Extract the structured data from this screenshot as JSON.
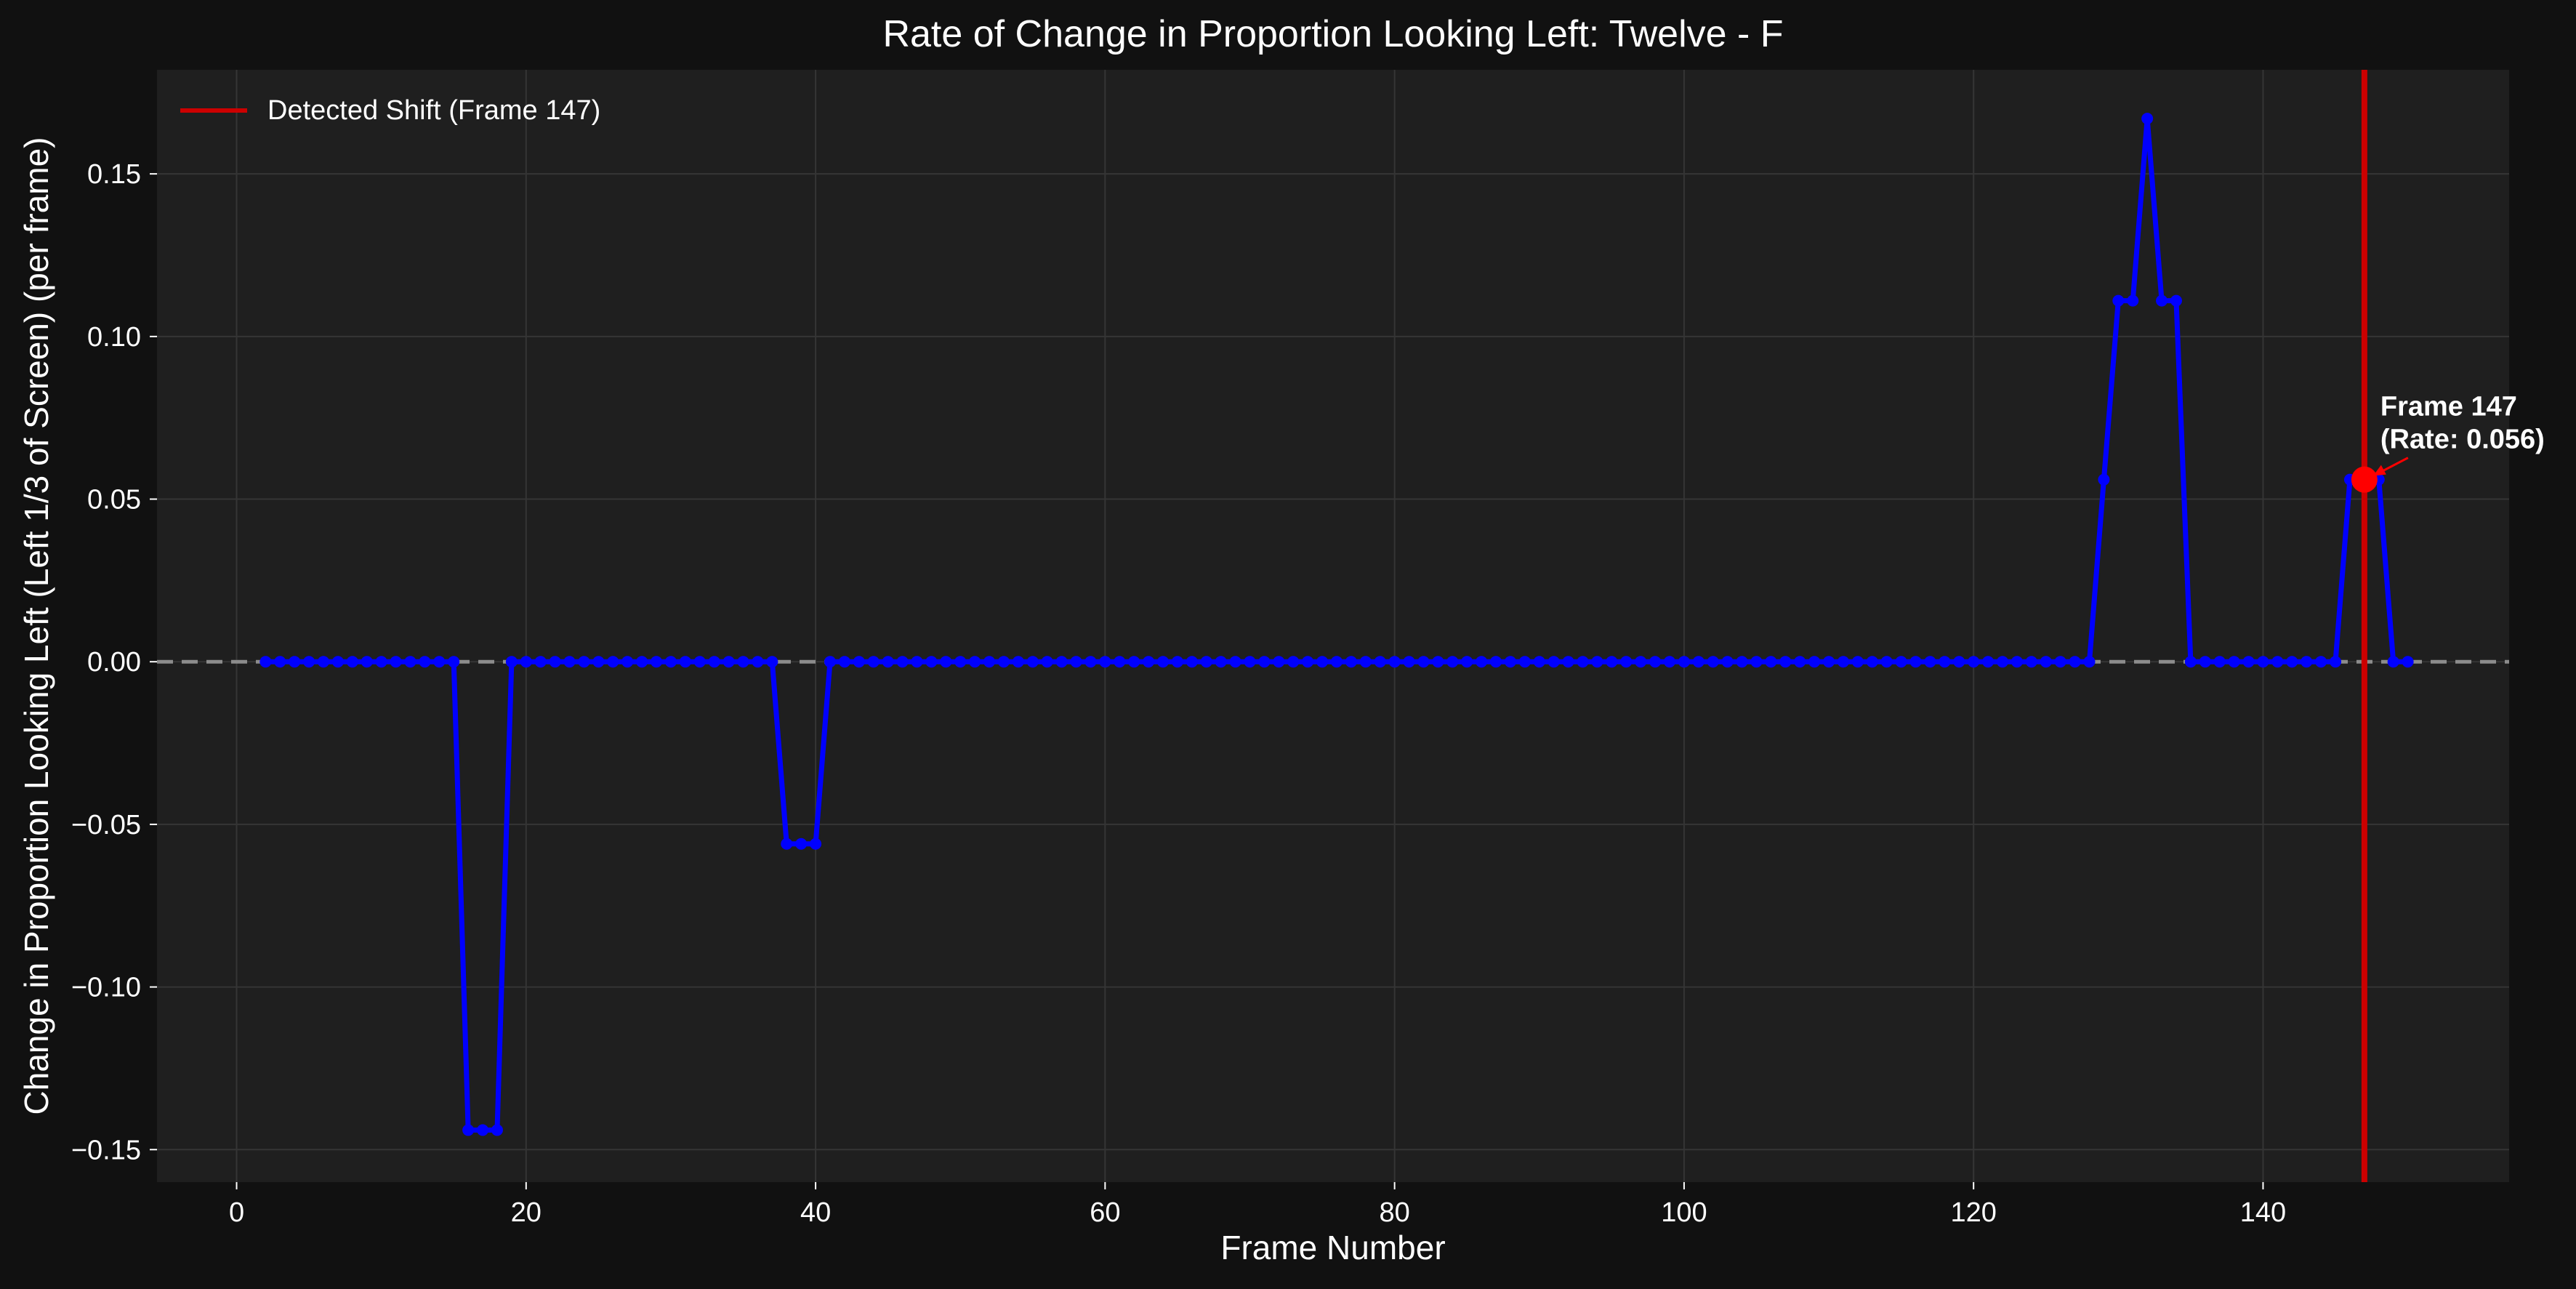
{
  "chart_data": {
    "type": "line",
    "title": "Rate of Change in Proportion Looking Left: Twelve - F",
    "xlabel": "Frame Number",
    "ylabel": "Change in Proportion Looking Left (Left 1/3 of Screen) (per frame)",
    "xlim": [
      -5.5,
      157
    ],
    "ylim": [
      -0.16,
      0.182
    ],
    "xticks": [
      0,
      20,
      40,
      60,
      80,
      100,
      120,
      140
    ],
    "yticks": [
      -0.15,
      -0.1,
      -0.05,
      0.0,
      0.05,
      0.1,
      0.15
    ],
    "ytick_labels": [
      "−0.15",
      "−0.10",
      "−0.05",
      "0.00",
      "0.05",
      "0.10",
      "0.15"
    ],
    "grid": true,
    "zero_line": 0,
    "series": [
      {
        "color": "#0000ff",
        "marker": "circle",
        "x": [
          2,
          3,
          4,
          5,
          6,
          7,
          8,
          9,
          10,
          11,
          12,
          13,
          14,
          15,
          16,
          17,
          18,
          19,
          20,
          21,
          22,
          23,
          24,
          25,
          26,
          27,
          28,
          29,
          30,
          31,
          32,
          33,
          34,
          35,
          36,
          37,
          38,
          39,
          40,
          41,
          42,
          43,
          44,
          45,
          46,
          47,
          48,
          49,
          50,
          51,
          52,
          53,
          54,
          55,
          56,
          57,
          58,
          59,
          60,
          61,
          62,
          63,
          64,
          65,
          66,
          67,
          68,
          69,
          70,
          71,
          72,
          73,
          74,
          75,
          76,
          77,
          78,
          79,
          80,
          81,
          82,
          83,
          84,
          85,
          86,
          87,
          88,
          89,
          90,
          91,
          92,
          93,
          94,
          95,
          96,
          97,
          98,
          99,
          100,
          101,
          102,
          103,
          104,
          105,
          106,
          107,
          108,
          109,
          110,
          111,
          112,
          113,
          114,
          115,
          116,
          117,
          118,
          119,
          120,
          121,
          122,
          123,
          124,
          125,
          126,
          127,
          128,
          129,
          130,
          131,
          132,
          133,
          134,
          135,
          136,
          137,
          138,
          139,
          140,
          141,
          142,
          143,
          144,
          145,
          146,
          147,
          148,
          149,
          150
        ],
        "y": [
          0,
          0,
          0,
          0,
          0,
          0,
          0,
          0,
          0,
          0,
          0,
          0,
          0,
          0,
          -0.144,
          -0.144,
          -0.144,
          0,
          0,
          0,
          0,
          0,
          0,
          0,
          0,
          0,
          0,
          0,
          0,
          0,
          0,
          0,
          0,
          0,
          0,
          0,
          -0.056,
          -0.056,
          -0.056,
          0,
          0,
          0,
          0,
          0,
          0,
          0,
          0,
          0,
          0,
          0,
          0,
          0,
          0,
          0,
          0,
          0,
          0,
          0,
          0,
          0,
          0,
          0,
          0,
          0,
          0,
          0,
          0,
          0,
          0,
          0,
          0,
          0,
          0,
          0,
          0,
          0,
          0,
          0,
          0,
          0,
          0,
          0,
          0,
          0,
          0,
          0,
          0,
          0,
          0,
          0,
          0,
          0,
          0,
          0,
          0,
          0,
          0,
          0,
          0,
          0,
          0,
          0,
          0,
          0,
          0,
          0,
          0,
          0,
          0,
          0,
          0,
          0,
          0,
          0,
          0,
          0,
          0,
          0,
          0,
          0,
          0,
          0,
          0,
          0,
          0,
          0,
          0,
          0.056,
          0.111,
          0.111,
          0.167,
          0.111,
          0.111,
          0,
          0,
          0,
          0,
          0,
          0,
          0,
          0,
          0,
          0,
          0,
          0.056,
          0.056,
          0.056,
          0,
          0
        ]
      }
    ],
    "detected_shift": {
      "frame": 147,
      "color": "#cc0000",
      "legend_label": "Detected Shift (Frame 147)",
      "highlight_y": 0.056,
      "annotation_line1": "Frame 147",
      "annotation_line2": "(Rate: 0.056)"
    },
    "legend_position": "top-left"
  }
}
